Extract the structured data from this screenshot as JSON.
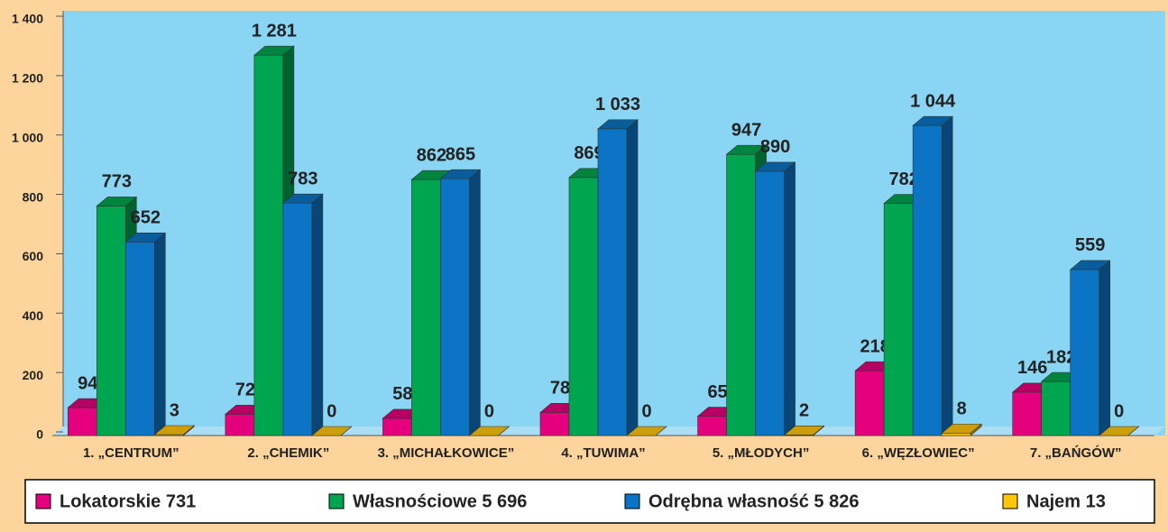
{
  "chart_data": {
    "type": "bar3d",
    "categories": [
      "1. „CENTRUM”",
      "2. „CHEMIK”",
      "3. „MICHAŁKOWICE”",
      "4. „TUWIMA”",
      "5. „MŁODYCH”",
      "6. „WĘZŁOWIEC”",
      "7. „BAŃGÓW”"
    ],
    "series": [
      {
        "name": "Lokatorskie 731",
        "color": "#e5007d",
        "values": [
          94,
          72,
          58,
          78,
          65,
          218,
          146
        ]
      },
      {
        "name": "Własnościowe 5 696",
        "color": "#00a54f",
        "values": [
          773,
          1281,
          862,
          869,
          947,
          782,
          182
        ],
        "value_labels": [
          "773",
          "1 281",
          "862",
          "869",
          "947",
          "782",
          "182"
        ]
      },
      {
        "name": "Odrębna własność 5 826",
        "color": "#0b74c4",
        "values": [
          652,
          783,
          865,
          1033,
          890,
          1044,
          559
        ],
        "value_labels": [
          "652",
          "783",
          "865",
          "1 033",
          "890",
          "1 044",
          "559"
        ]
      },
      {
        "name": "Najem 13",
        "color": "#ffc60b",
        "values": [
          3,
          0,
          0,
          0,
          2,
          8,
          0
        ]
      }
    ],
    "ylim": [
      0,
      1400
    ],
    "yticks": [
      0,
      200,
      400,
      600,
      800,
      {
        "value": 1000,
        "label": "1 000"
      },
      {
        "value": 1200,
        "label": "1 200"
      },
      {
        "value": 1400,
        "label": "1 400"
      }
    ],
    "grid": false,
    "legend": "bottom"
  }
}
